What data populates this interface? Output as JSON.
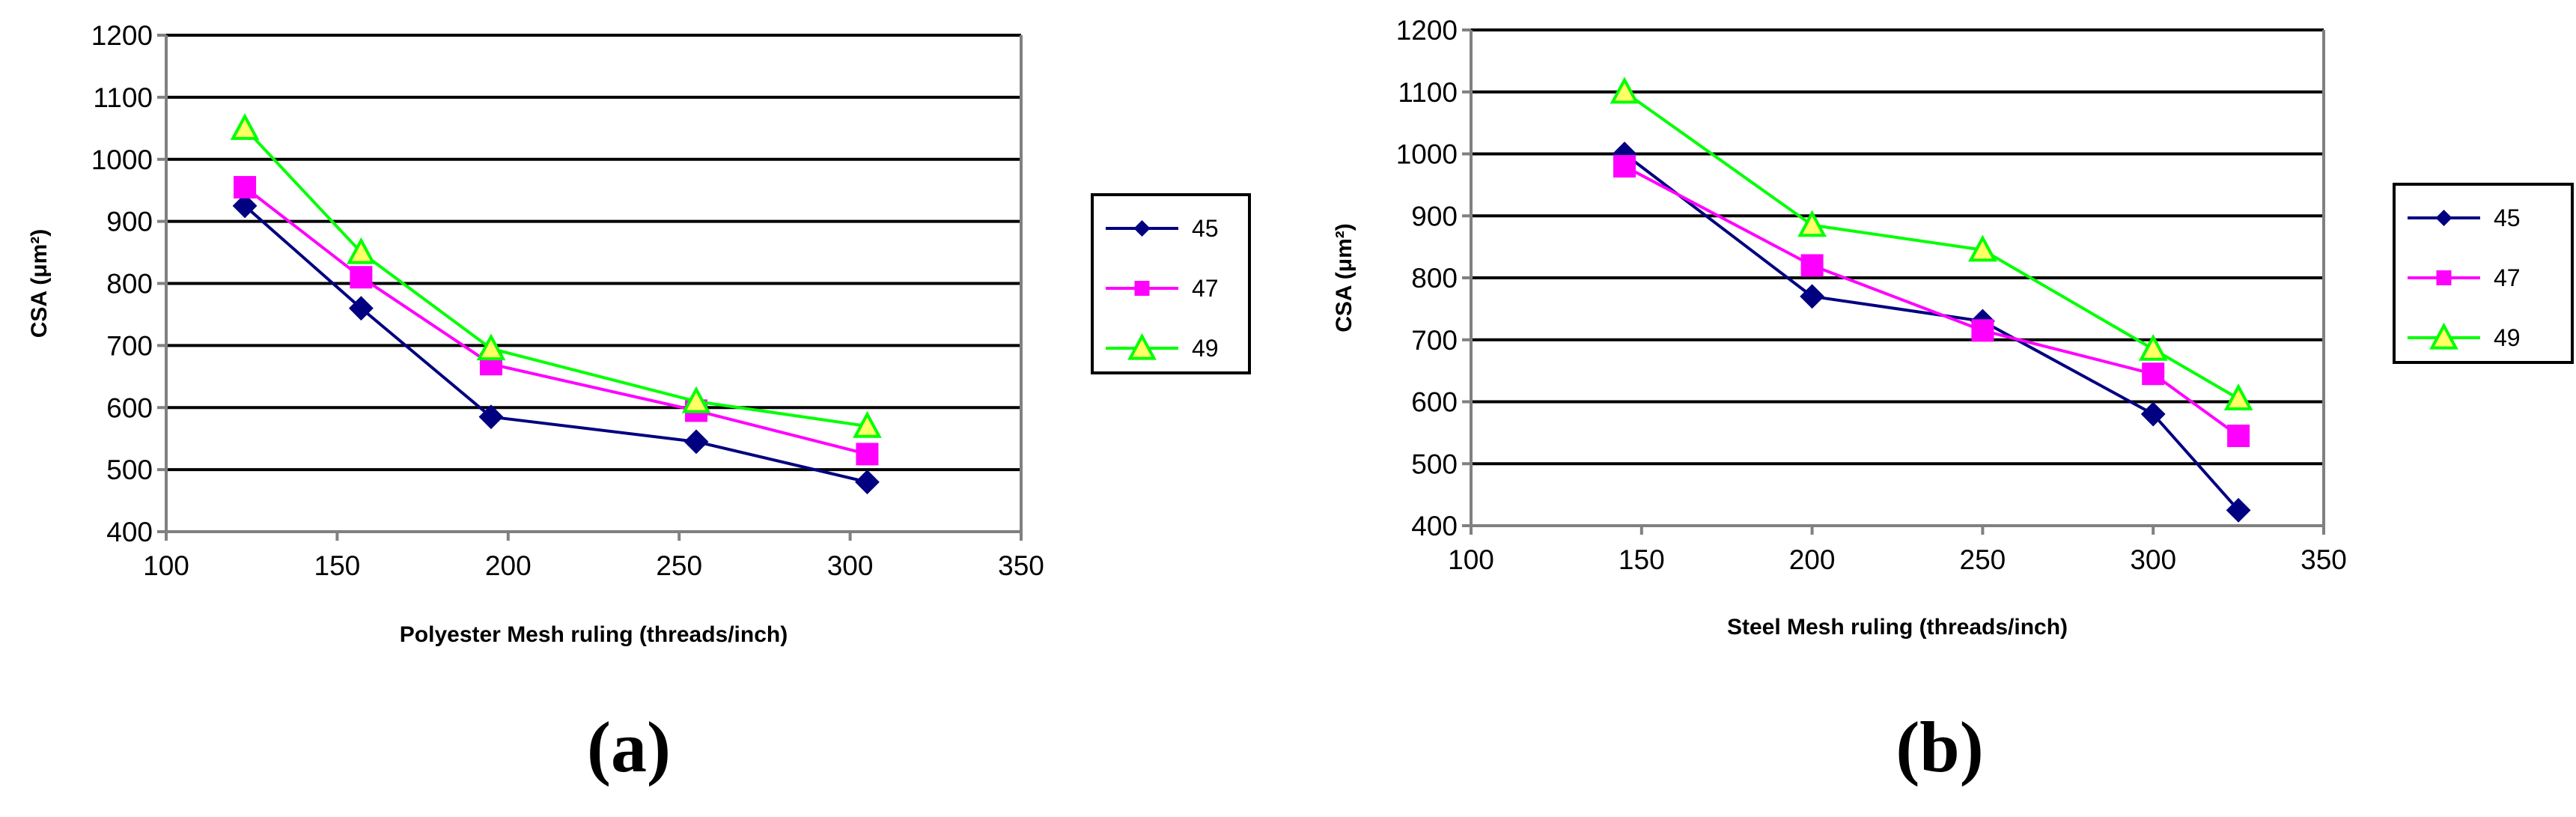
{
  "chart_data": [
    {
      "panel": "(a)",
      "type": "line",
      "title": "",
      "xlabel": "Polyester Mesh ruling (threads/inch)",
      "ylabel": "CSA (μm²)",
      "xlim": [
        100,
        350
      ],
      "ylim": [
        400,
        1200
      ],
      "xticks": [
        100,
        150,
        200,
        250,
        300,
        350
      ],
      "yticks": [
        400,
        500,
        600,
        700,
        800,
        900,
        1000,
        1100,
        1200
      ],
      "grid": "horizontal",
      "legend": "right",
      "series": [
        {
          "name": "45",
          "color": "#000080",
          "marker": "diamond",
          "points": [
            [
              123,
              925
            ],
            [
              157,
              760
            ],
            [
              195,
              585
            ],
            [
              255,
              545
            ],
            [
              305,
              480
            ]
          ]
        },
        {
          "name": "47",
          "color": "#FF00FF",
          "marker": "square",
          "points": [
            [
              123,
              955
            ],
            [
              157,
              810
            ],
            [
              195,
              670
            ],
            [
              255,
              595
            ],
            [
              305,
              525
            ]
          ]
        },
        {
          "name": "49",
          "color": "#00FF00",
          "marker": "triangle",
          "points": [
            [
              123,
              1050
            ],
            [
              157,
              850
            ],
            [
              195,
              695
            ],
            [
              255,
              610
            ],
            [
              305,
              570
            ]
          ]
        }
      ]
    },
    {
      "panel": "(b)",
      "type": "line",
      "title": "",
      "xlabel": "Steel Mesh ruling (threads/inch)",
      "ylabel": "CSA (μm²)",
      "xlim": [
        100,
        350
      ],
      "ylim": [
        400,
        1200
      ],
      "xticks": [
        100,
        150,
        200,
        250,
        300,
        350
      ],
      "yticks": [
        400,
        500,
        600,
        700,
        800,
        900,
        1000,
        1100,
        1200
      ],
      "grid": "horizontal",
      "legend": "right",
      "series": [
        {
          "name": "45",
          "color": "#000080",
          "marker": "diamond",
          "points": [
            [
              145,
              1000
            ],
            [
              200,
              770
            ],
            [
              250,
              730
            ],
            [
              300,
              580
            ],
            [
              325,
              425
            ]
          ]
        },
        {
          "name": "47",
          "color": "#FF00FF",
          "marker": "square",
          "points": [
            [
              145,
              980
            ],
            [
              200,
              820
            ],
            [
              250,
              715
            ],
            [
              300,
              645
            ],
            [
              325,
              545
            ]
          ]
        },
        {
          "name": "49",
          "color": "#00FF00",
          "marker": "triangle",
          "points": [
            [
              145,
              1100
            ],
            [
              200,
              885
            ],
            [
              250,
              845
            ],
            [
              300,
              685
            ],
            [
              325,
              605
            ]
          ]
        }
      ]
    }
  ]
}
